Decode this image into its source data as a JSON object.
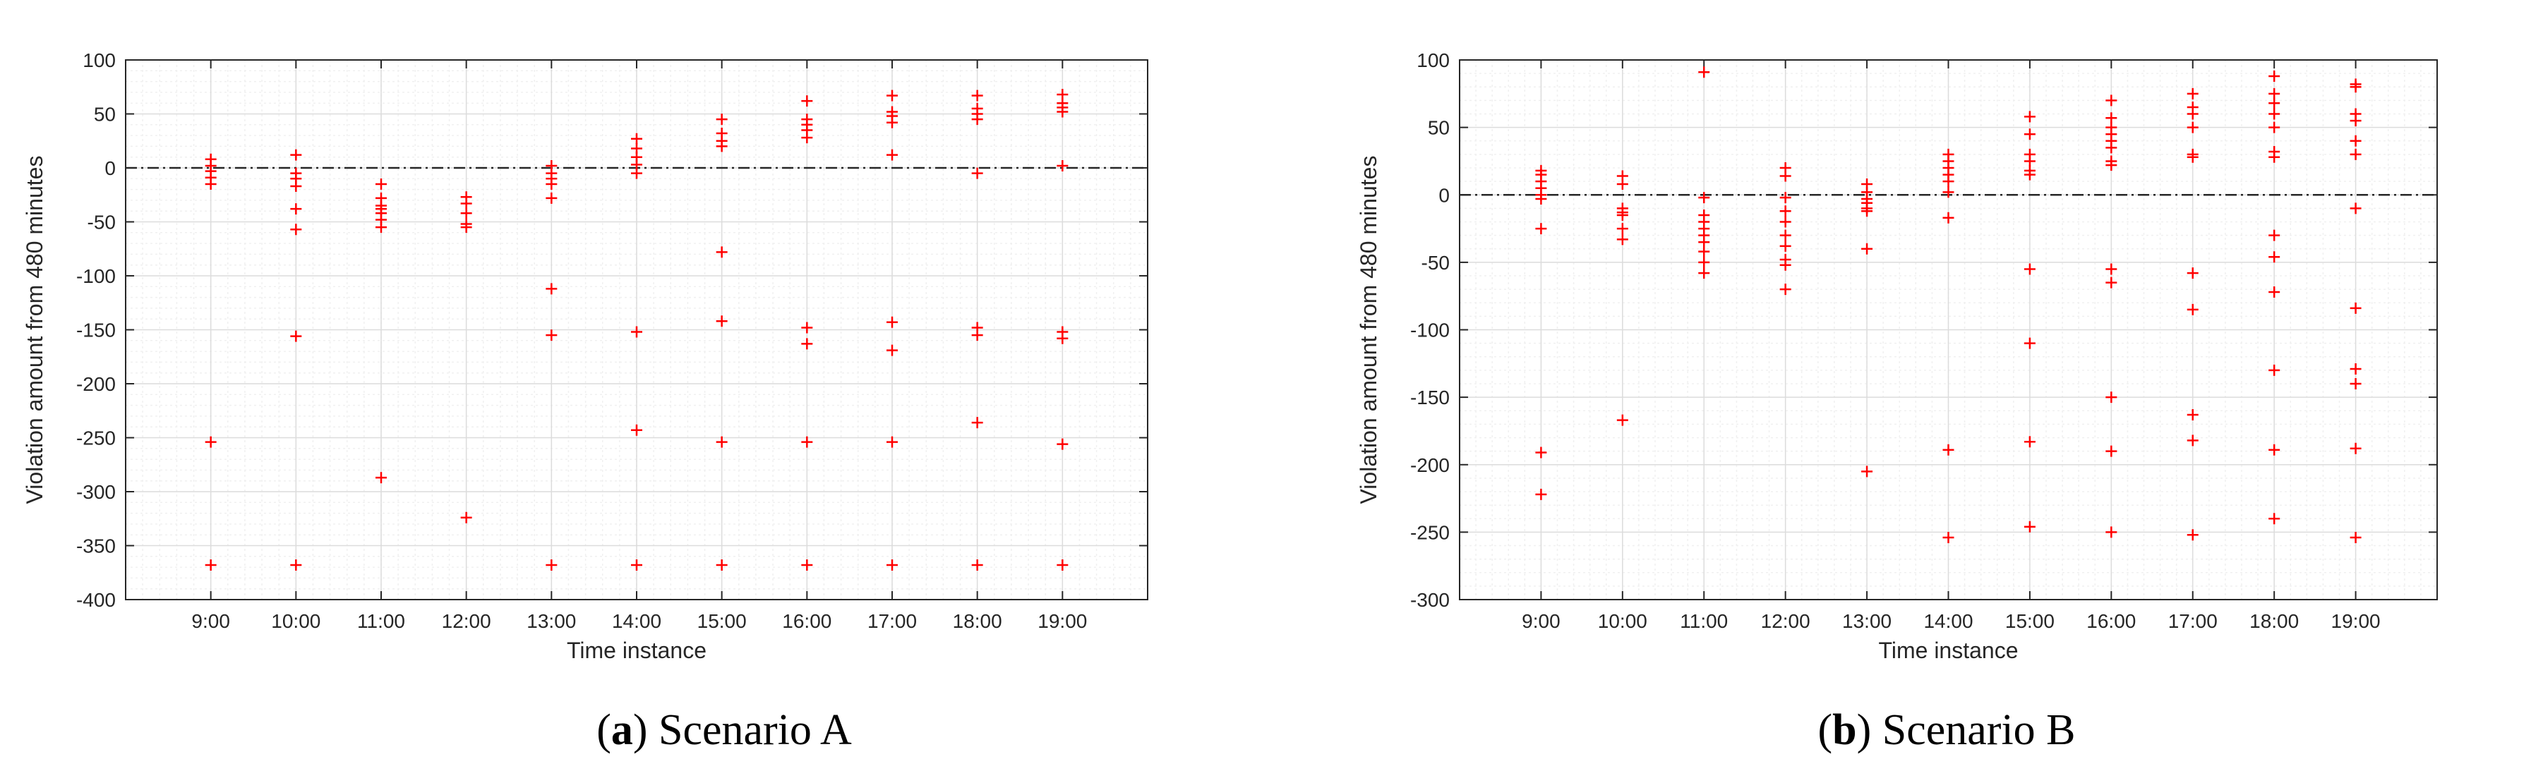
{
  "colors": {
    "marker": "#ff0000",
    "zero_line": "#262626",
    "grid_minor": "#f0f0f0",
    "grid_major": "#dcdcdc",
    "axes": "#262626"
  },
  "chart_data": [
    {
      "type": "scatter",
      "marker": "+",
      "grid": "on (major and minor)",
      "xlabel": "Time instance",
      "ylabel": "Violation amount from 480 minutes",
      "ylim": [
        -400,
        100
      ],
      "yticks": [
        -400,
        -350,
        -300,
        -250,
        -200,
        -150,
        -100,
        -50,
        0,
        50,
        100
      ],
      "categories": [
        "9:00",
        "10:00",
        "11:00",
        "12:00",
        "13:00",
        "14:00",
        "15:00",
        "16:00",
        "17:00",
        "18:00",
        "19:00"
      ],
      "reference_line": {
        "y": 0,
        "style": "dash-dot"
      },
      "caption_label": "a",
      "caption_text": "Scenario A",
      "points": [
        [
          "9:00",
          8
        ],
        [
          "9:00",
          2
        ],
        [
          "9:00",
          -3
        ],
        [
          "9:00",
          -9
        ],
        [
          "9:00",
          -15
        ],
        [
          "9:00",
          -254
        ],
        [
          "9:00",
          -368
        ],
        [
          "10:00",
          12
        ],
        [
          "10:00",
          -5
        ],
        [
          "10:00",
          -10
        ],
        [
          "10:00",
          -17
        ],
        [
          "10:00",
          -38
        ],
        [
          "10:00",
          -57
        ],
        [
          "10:00",
          -156
        ],
        [
          "10:00",
          -368
        ],
        [
          "11:00",
          -15
        ],
        [
          "11:00",
          -28
        ],
        [
          "11:00",
          -35
        ],
        [
          "11:00",
          -38
        ],
        [
          "11:00",
          -42
        ],
        [
          "11:00",
          -48
        ],
        [
          "11:00",
          -55
        ],
        [
          "11:00",
          -287
        ],
        [
          "12:00",
          -27
        ],
        [
          "12:00",
          -33
        ],
        [
          "12:00",
          -42
        ],
        [
          "12:00",
          -52
        ],
        [
          "12:00",
          -55
        ],
        [
          "12:00",
          -324
        ],
        [
          "13:00",
          2
        ],
        [
          "13:00",
          -5
        ],
        [
          "13:00",
          -10
        ],
        [
          "13:00",
          -15
        ],
        [
          "13:00",
          -28
        ],
        [
          "13:00",
          -112
        ],
        [
          "13:00",
          -155
        ],
        [
          "13:00",
          -368
        ],
        [
          "14:00",
          27
        ],
        [
          "14:00",
          18
        ],
        [
          "14:00",
          10
        ],
        [
          "14:00",
          3
        ],
        [
          "14:00",
          -5
        ],
        [
          "14:00",
          -152
        ],
        [
          "14:00",
          -243
        ],
        [
          "14:00",
          -368
        ],
        [
          "15:00",
          45
        ],
        [
          "15:00",
          32
        ],
        [
          "15:00",
          25
        ],
        [
          "15:00",
          20
        ],
        [
          "15:00",
          -78
        ],
        [
          "15:00",
          -142
        ],
        [
          "15:00",
          -254
        ],
        [
          "15:00",
          -368
        ],
        [
          "16:00",
          62
        ],
        [
          "16:00",
          45
        ],
        [
          "16:00",
          40
        ],
        [
          "16:00",
          35
        ],
        [
          "16:00",
          28
        ],
        [
          "16:00",
          -148
        ],
        [
          "16:00",
          -163
        ],
        [
          "16:00",
          -254
        ],
        [
          "16:00",
          -368
        ],
        [
          "17:00",
          67
        ],
        [
          "17:00",
          52
        ],
        [
          "17:00",
          48
        ],
        [
          "17:00",
          42
        ],
        [
          "17:00",
          12
        ],
        [
          "17:00",
          -143
        ],
        [
          "17:00",
          -169
        ],
        [
          "17:00",
          -254
        ],
        [
          "17:00",
          -368
        ],
        [
          "18:00",
          67
        ],
        [
          "18:00",
          55
        ],
        [
          "18:00",
          50
        ],
        [
          "18:00",
          45
        ],
        [
          "18:00",
          -5
        ],
        [
          "18:00",
          -148
        ],
        [
          "18:00",
          -155
        ],
        [
          "18:00",
          -236
        ],
        [
          "18:00",
          -368
        ],
        [
          "19:00",
          68
        ],
        [
          "19:00",
          60
        ],
        [
          "19:00",
          56
        ],
        [
          "19:00",
          52
        ],
        [
          "19:00",
          2
        ],
        [
          "19:00",
          -152
        ],
        [
          "19:00",
          -158
        ],
        [
          "19:00",
          -256
        ],
        [
          "19:00",
          -368
        ]
      ]
    },
    {
      "type": "scatter",
      "marker": "+",
      "grid": "on (major and minor)",
      "xlabel": "Time instance",
      "ylabel": "Violation amount from 480 minutes",
      "ylim": [
        -300,
        100
      ],
      "yticks": [
        -300,
        -250,
        -200,
        -150,
        -100,
        -50,
        0,
        50,
        100
      ],
      "categories": [
        "9:00",
        "10:00",
        "11:00",
        "12:00",
        "13:00",
        "14:00",
        "15:00",
        "16:00",
        "17:00",
        "18:00",
        "19:00"
      ],
      "reference_line": {
        "y": 0,
        "style": "dash-dot"
      },
      "caption_label": "b",
      "caption_text": "Scenario B",
      "points": [
        [
          "9:00",
          18
        ],
        [
          "9:00",
          15
        ],
        [
          "9:00",
          10
        ],
        [
          "9:00",
          5
        ],
        [
          "9:00",
          0
        ],
        [
          "9:00",
          -3
        ],
        [
          "9:00",
          -25
        ],
        [
          "9:00",
          -191
        ],
        [
          "9:00",
          -222
        ],
        [
          "10:00",
          14
        ],
        [
          "10:00",
          8
        ],
        [
          "10:00",
          -10
        ],
        [
          "10:00",
          -13
        ],
        [
          "10:00",
          -15
        ],
        [
          "10:00",
          -25
        ],
        [
          "10:00",
          -33
        ],
        [
          "10:00",
          -167
        ],
        [
          "11:00",
          91
        ],
        [
          "11:00",
          -2
        ],
        [
          "11:00",
          -15
        ],
        [
          "11:00",
          -20
        ],
        [
          "11:00",
          -25
        ],
        [
          "11:00",
          -30
        ],
        [
          "11:00",
          -35
        ],
        [
          "11:00",
          -42
        ],
        [
          "11:00",
          -50
        ],
        [
          "11:00",
          -58
        ],
        [
          "12:00",
          20
        ],
        [
          "12:00",
          14
        ],
        [
          "12:00",
          -2
        ],
        [
          "12:00",
          -12
        ],
        [
          "12:00",
          -20
        ],
        [
          "12:00",
          -30
        ],
        [
          "12:00",
          -38
        ],
        [
          "12:00",
          -48
        ],
        [
          "12:00",
          -52
        ],
        [
          "12:00",
          -70
        ],
        [
          "13:00",
          8
        ],
        [
          "13:00",
          2
        ],
        [
          "13:00",
          -3
        ],
        [
          "13:00",
          -6
        ],
        [
          "13:00",
          -10
        ],
        [
          "13:00",
          -12
        ],
        [
          "13:00",
          -40
        ],
        [
          "13:00",
          -205
        ],
        [
          "14:00",
          30
        ],
        [
          "14:00",
          25
        ],
        [
          "14:00",
          20
        ],
        [
          "14:00",
          15
        ],
        [
          "14:00",
          10
        ],
        [
          "14:00",
          2
        ],
        [
          "14:00",
          -17
        ],
        [
          "14:00",
          -189
        ],
        [
          "14:00",
          -254
        ],
        [
          "15:00",
          58
        ],
        [
          "15:00",
          45
        ],
        [
          "15:00",
          30
        ],
        [
          "15:00",
          25
        ],
        [
          "15:00",
          18
        ],
        [
          "15:00",
          15
        ],
        [
          "15:00",
          -55
        ],
        [
          "15:00",
          -110
        ],
        [
          "15:00",
          -183
        ],
        [
          "15:00",
          -246
        ],
        [
          "16:00",
          70
        ],
        [
          "16:00",
          57
        ],
        [
          "16:00",
          50
        ],
        [
          "16:00",
          45
        ],
        [
          "16:00",
          40
        ],
        [
          "16:00",
          35
        ],
        [
          "16:00",
          25
        ],
        [
          "16:00",
          22
        ],
        [
          "16:00",
          -55
        ],
        [
          "16:00",
          -65
        ],
        [
          "16:00",
          -150
        ],
        [
          "16:00",
          -190
        ],
        [
          "16:00",
          -250
        ],
        [
          "17:00",
          75
        ],
        [
          "17:00",
          65
        ],
        [
          "17:00",
          60
        ],
        [
          "17:00",
          50
        ],
        [
          "17:00",
          30
        ],
        [
          "17:00",
          28
        ],
        [
          "17:00",
          -58
        ],
        [
          "17:00",
          -85
        ],
        [
          "17:00",
          -163
        ],
        [
          "17:00",
          -182
        ],
        [
          "17:00",
          -252
        ],
        [
          "18:00",
          88
        ],
        [
          "18:00",
          75
        ],
        [
          "18:00",
          68
        ],
        [
          "18:00",
          60
        ],
        [
          "18:00",
          50
        ],
        [
          "18:00",
          32
        ],
        [
          "18:00",
          28
        ],
        [
          "18:00",
          -30
        ],
        [
          "18:00",
          -46
        ],
        [
          "18:00",
          -72
        ],
        [
          "18:00",
          -130
        ],
        [
          "18:00",
          -189
        ],
        [
          "18:00",
          -240
        ],
        [
          "19:00",
          82
        ],
        [
          "19:00",
          80
        ],
        [
          "19:00",
          60
        ],
        [
          "19:00",
          55
        ],
        [
          "19:00",
          40
        ],
        [
          "19:00",
          30
        ],
        [
          "19:00",
          -10
        ],
        [
          "19:00",
          -84
        ],
        [
          "19:00",
          -129
        ],
        [
          "19:00",
          -140
        ],
        [
          "19:00",
          -188
        ],
        [
          "19:00",
          -254
        ]
      ]
    }
  ]
}
